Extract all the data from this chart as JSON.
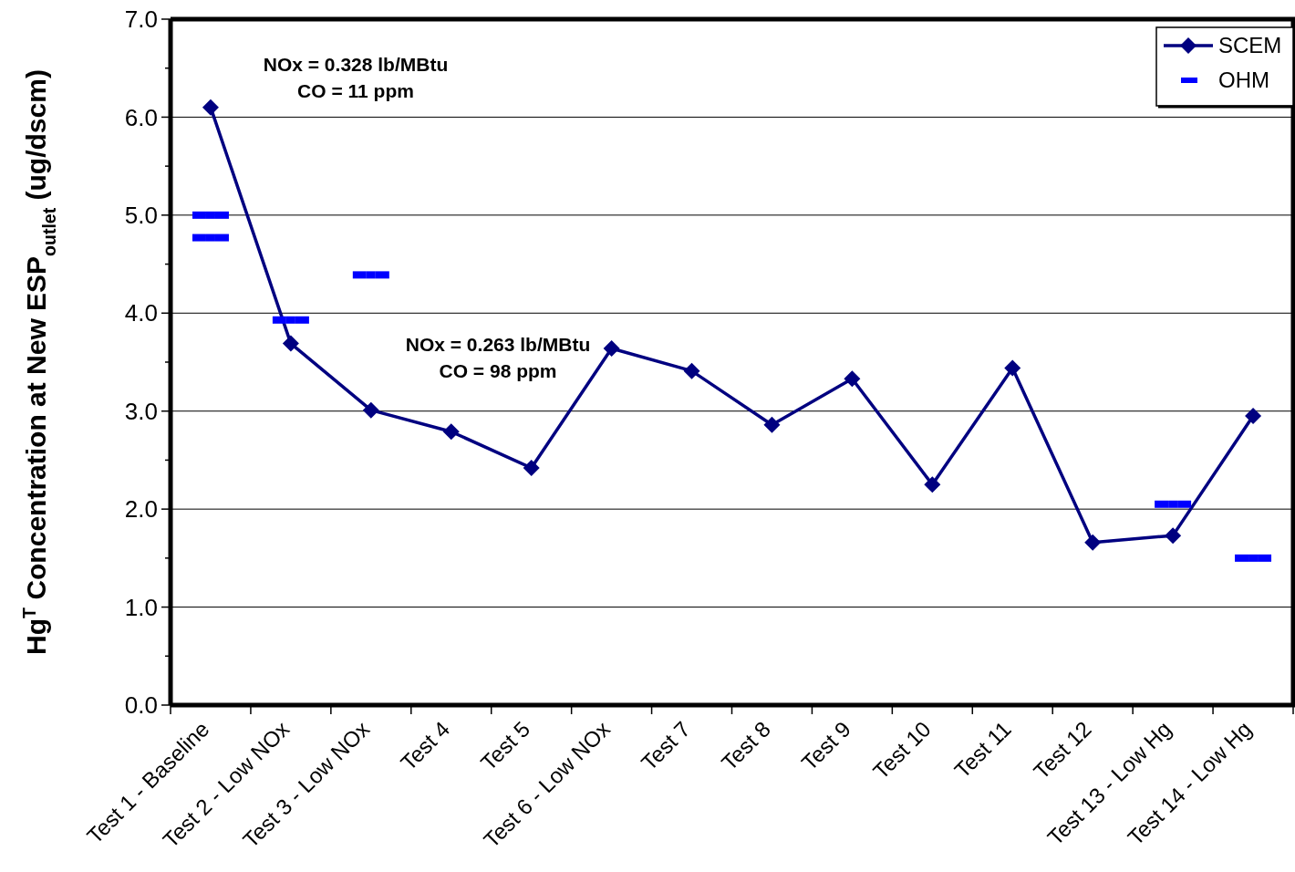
{
  "chart_data": {
    "type": "line",
    "ylabel": "Hg$^{T}$ Concentration at New ESP$_{outlet}$ (ug/dscm)",
    "categories": [
      "Test 1 - Baseline",
      "Test 2 - Low NOx",
      "Test 3 - Low NOx",
      "Test 4",
      "Test 5",
      "Test 6 - Low NOx",
      "Test 7",
      "Test 8",
      "Test 9",
      "Test 10",
      "Test 11",
      "Test 12",
      "Test 13 - Low Hg",
      "Test 14 - Low Hg"
    ],
    "series": [
      {
        "name": "SCEM",
        "color": "#000080",
        "marker": "diamond",
        "values": [
          6.1,
          3.69,
          3.01,
          2.79,
          2.42,
          3.64,
          3.41,
          2.86,
          3.33,
          2.25,
          3.44,
          1.66,
          1.73,
          2.95
        ]
      },
      {
        "name": "OHM",
        "type": "scatter",
        "color": "#0000ff",
        "x": [
          "Test 1 - Baseline",
          "Test 1 - Baseline",
          "Test 2 - Low NOx",
          "Test 3 - Low NOx",
          "Test 13 - Low Hg",
          "Test 14 - Low Hg"
        ],
        "values": [
          5.0,
          4.77,
          3.93,
          4.39,
          2.05,
          1.5
        ]
      }
    ],
    "ylim": [
      0,
      7
    ],
    "yticks": [
      {
        "value": 0,
        "label": "0.0"
      },
      {
        "value": 0.5,
        "label": null
      },
      {
        "value": 1,
        "label": "1.0"
      },
      {
        "value": 1.5,
        "label": null
      },
      {
        "value": 2,
        "label": "2.0"
      },
      {
        "value": 2.5,
        "label": null
      },
      {
        "value": 3,
        "label": "3.0"
      },
      {
        "value": 3.5,
        "label": null
      },
      {
        "value": 4,
        "label": "4.0"
      },
      {
        "value": 4.5,
        "label": null
      },
      {
        "value": 5,
        "label": "5.0"
      },
      {
        "value": 5.5,
        "label": null
      },
      {
        "value": 6,
        "label": "6.0"
      },
      {
        "value": 6.5,
        "label": null
      },
      {
        "value": 7,
        "label": "7.0"
      }
    ],
    "grid": "y",
    "legend": "top right",
    "annotations": [
      "NOx = 0.328 lb/MBtu\nCO = 11 ppm",
      "NOx = 0.263 lb/MBtu\nCO = 98 ppm"
    ]
  }
}
